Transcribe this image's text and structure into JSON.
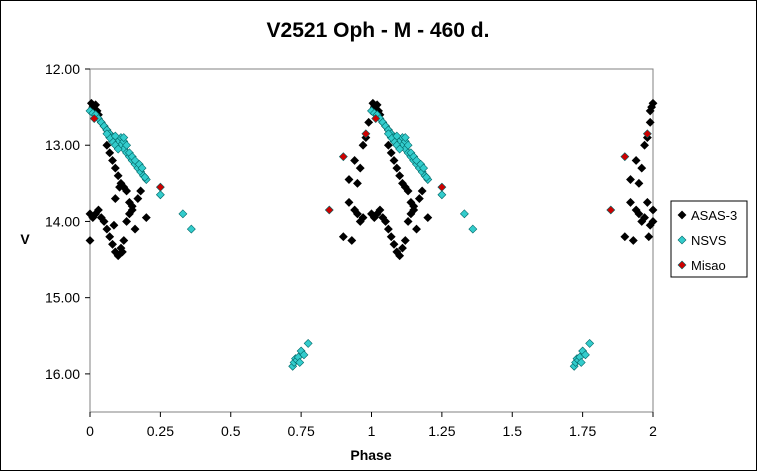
{
  "chart_data": {
    "type": "scatter",
    "title": "V2521 Oph - M - 460 d.",
    "xlabel": "Phase",
    "ylabel": "V",
    "xlim": [
      0,
      2
    ],
    "ylim": [
      12.0,
      16.5
    ],
    "y_inverted": true,
    "x_ticks": [
      "0",
      "0.25",
      "0.5",
      "0.75",
      "1",
      "1.25",
      "1.5",
      "1.75",
      "2"
    ],
    "x_tick_values": [
      0,
      0.25,
      0.5,
      0.75,
      1,
      1.25,
      1.5,
      1.75,
      2
    ],
    "y_ticks": [
      "12.00",
      "13.00",
      "14.00",
      "15.00",
      "16.00"
    ],
    "y_tick_values": [
      12,
      13,
      14,
      15,
      16
    ],
    "grid": false,
    "legend_position": "right",
    "series": [
      {
        "name": "ASAS-3",
        "color": "#000000",
        "marker": "diamond",
        "points": [
          [
            0.005,
            12.45
          ],
          [
            0.01,
            12.5
          ],
          [
            0.012,
            12.48
          ],
          [
            0.02,
            12.47
          ],
          [
            0.025,
            12.55
          ],
          [
            0.03,
            12.6
          ],
          [
            0.04,
            12.7
          ],
          [
            0.05,
            12.75
          ],
          [
            0.06,
            12.8
          ],
          [
            0.07,
            12.85
          ],
          [
            0.06,
            13.0
          ],
          [
            0.07,
            13.1
          ],
          [
            0.08,
            13.2
          ],
          [
            0.09,
            13.3
          ],
          [
            0.1,
            13.4
          ],
          [
            0.11,
            13.5
          ],
          [
            0.12,
            13.55
          ],
          [
            0.13,
            13.6
          ],
          [
            0.14,
            13.75
          ],
          [
            0.15,
            13.8
          ],
          [
            0.0,
            13.9
          ],
          [
            0.01,
            13.95
          ],
          [
            0.02,
            13.9
          ],
          [
            0.03,
            13.85
          ],
          [
            0.04,
            13.95
          ],
          [
            0.05,
            14.0
          ],
          [
            0.06,
            14.1
          ],
          [
            0.07,
            14.2
          ],
          [
            0.08,
            14.3
          ],
          [
            0.09,
            14.4
          ],
          [
            0.1,
            14.45
          ],
          [
            0.11,
            14.35
          ],
          [
            0.12,
            14.25
          ],
          [
            0.13,
            14.0
          ],
          [
            0.14,
            13.9
          ],
          [
            0.15,
            13.85
          ],
          [
            0.16,
            14.1
          ],
          [
            0.17,
            13.7
          ],
          [
            0.18,
            13.6
          ],
          [
            0.2,
            13.95
          ],
          [
            0.0,
            14.25
          ],
          [
            0.09,
            13.7
          ],
          [
            0.105,
            13.55
          ],
          [
            0.115,
            14.4
          ],
          [
            0.085,
            14.05
          ],
          [
            1.005,
            12.45
          ],
          [
            1.01,
            12.5
          ],
          [
            1.012,
            12.48
          ],
          [
            1.02,
            12.47
          ],
          [
            1.025,
            12.55
          ],
          [
            1.03,
            12.6
          ],
          [
            1.04,
            12.7
          ],
          [
            1.05,
            12.75
          ],
          [
            1.06,
            12.8
          ],
          [
            1.07,
            12.85
          ],
          [
            1.06,
            13.0
          ],
          [
            1.07,
            13.1
          ],
          [
            1.08,
            13.2
          ],
          [
            1.09,
            13.3
          ],
          [
            1.1,
            13.4
          ],
          [
            1.11,
            13.5
          ],
          [
            1.12,
            13.55
          ],
          [
            1.13,
            13.6
          ],
          [
            1.14,
            13.75
          ],
          [
            1.15,
            13.8
          ],
          [
            1.0,
            13.9
          ],
          [
            1.01,
            13.95
          ],
          [
            1.02,
            13.9
          ],
          [
            1.03,
            13.85
          ],
          [
            1.04,
            13.95
          ],
          [
            1.05,
            14.0
          ],
          [
            1.06,
            14.1
          ],
          [
            1.07,
            14.2
          ],
          [
            1.08,
            14.3
          ],
          [
            1.09,
            14.4
          ],
          [
            1.1,
            14.45
          ],
          [
            1.11,
            14.35
          ],
          [
            1.12,
            14.25
          ],
          [
            1.13,
            14.0
          ],
          [
            1.14,
            13.9
          ],
          [
            1.15,
            13.85
          ],
          [
            1.16,
            14.1
          ],
          [
            1.17,
            13.7
          ],
          [
            1.18,
            13.6
          ],
          [
            1.2,
            13.95
          ],
          [
            0.9,
            14.2
          ],
          [
            0.93,
            14.25
          ],
          [
            0.92,
            13.75
          ],
          [
            0.94,
            13.85
          ],
          [
            0.95,
            13.9
          ],
          [
            0.96,
            14.0
          ],
          [
            0.97,
            13.95
          ],
          [
            0.95,
            13.5
          ],
          [
            0.96,
            13.3
          ],
          [
            0.97,
            13.0
          ],
          [
            0.98,
            12.9
          ],
          [
            0.99,
            12.7
          ],
          [
            0.92,
            13.45
          ],
          [
            0.94,
            13.2
          ],
          [
            1.9,
            14.2
          ],
          [
            1.93,
            14.25
          ],
          [
            1.92,
            13.75
          ],
          [
            1.94,
            13.85
          ],
          [
            1.95,
            13.9
          ],
          [
            1.96,
            14.0
          ],
          [
            1.97,
            13.95
          ],
          [
            1.95,
            13.5
          ],
          [
            1.96,
            13.3
          ],
          [
            1.97,
            13.0
          ],
          [
            1.98,
            12.9
          ],
          [
            1.99,
            12.7
          ],
          [
            1.92,
            13.45
          ],
          [
            1.94,
            13.2
          ],
          [
            1.995,
            12.5
          ],
          [
            2.0,
            12.45
          ],
          [
            1.99,
            12.55
          ],
          [
            2.0,
            13.85
          ],
          [
            2.0,
            14.0
          ],
          [
            1.985,
            14.2
          ],
          [
            1.99,
            14.05
          ],
          [
            1.98,
            13.75
          ]
        ]
      },
      {
        "name": "NSVS",
        "color": "#33CCCC",
        "marker": "diamond",
        "points": [
          [
            0.0,
            12.55
          ],
          [
            0.01,
            12.58
          ],
          [
            0.02,
            12.6
          ],
          [
            0.03,
            12.65
          ],
          [
            0.04,
            12.7
          ],
          [
            0.05,
            12.75
          ],
          [
            0.06,
            12.8
          ],
          [
            0.07,
            12.85
          ],
          [
            0.08,
            12.9
          ],
          [
            0.09,
            12.92
          ],
          [
            0.1,
            12.95
          ],
          [
            0.11,
            13.0
          ],
          [
            0.12,
            13.05
          ],
          [
            0.13,
            13.1
          ],
          [
            0.14,
            13.15
          ],
          [
            0.15,
            13.2
          ],
          [
            0.16,
            13.25
          ],
          [
            0.17,
            13.3
          ],
          [
            0.18,
            13.35
          ],
          [
            0.19,
            13.4
          ],
          [
            0.2,
            13.45
          ],
          [
            0.08,
            12.95
          ],
          [
            0.09,
            13.0
          ],
          [
            0.1,
            13.05
          ],
          [
            0.11,
            12.9
          ],
          [
            0.12,
            12.95
          ],
          [
            0.13,
            13.0
          ],
          [
            0.14,
            13.1
          ],
          [
            0.15,
            13.15
          ],
          [
            0.16,
            13.2
          ],
          [
            0.07,
            12.9
          ],
          [
            0.06,
            12.85
          ],
          [
            0.09,
            12.88
          ],
          [
            0.12,
            12.9
          ],
          [
            0.175,
            13.25
          ],
          [
            0.185,
            13.3
          ],
          [
            0.195,
            13.42
          ],
          [
            0.25,
            13.65
          ],
          [
            0.33,
            13.9
          ],
          [
            0.36,
            14.1
          ],
          [
            0.72,
            15.9
          ],
          [
            0.725,
            15.85
          ],
          [
            0.73,
            15.8
          ],
          [
            0.735,
            15.82
          ],
          [
            0.74,
            15.78
          ],
          [
            0.745,
            15.85
          ],
          [
            0.75,
            15.7
          ],
          [
            0.76,
            15.75
          ],
          [
            0.775,
            15.6
          ],
          [
            1.0,
            12.55
          ],
          [
            1.01,
            12.58
          ],
          [
            1.02,
            12.6
          ],
          [
            1.03,
            12.65
          ],
          [
            1.04,
            12.7
          ],
          [
            1.05,
            12.75
          ],
          [
            1.06,
            12.8
          ],
          [
            1.07,
            12.85
          ],
          [
            1.08,
            12.9
          ],
          [
            1.09,
            12.92
          ],
          [
            1.1,
            12.95
          ],
          [
            1.11,
            13.0
          ],
          [
            1.12,
            13.05
          ],
          [
            1.13,
            13.1
          ],
          [
            1.14,
            13.15
          ],
          [
            1.15,
            13.2
          ],
          [
            1.16,
            13.25
          ],
          [
            1.17,
            13.3
          ],
          [
            1.18,
            13.35
          ],
          [
            1.19,
            13.4
          ],
          [
            1.2,
            13.45
          ],
          [
            1.08,
            12.95
          ],
          [
            1.09,
            13.0
          ],
          [
            1.1,
            13.05
          ],
          [
            1.11,
            12.9
          ],
          [
            1.12,
            12.95
          ],
          [
            1.13,
            13.0
          ],
          [
            1.14,
            13.1
          ],
          [
            1.15,
            13.15
          ],
          [
            1.16,
            13.2
          ],
          [
            1.07,
            12.9
          ],
          [
            1.06,
            12.85
          ],
          [
            1.09,
            12.88
          ],
          [
            1.12,
            12.9
          ],
          [
            1.175,
            13.25
          ],
          [
            1.185,
            13.3
          ],
          [
            1.195,
            13.42
          ],
          [
            1.25,
            13.65
          ],
          [
            1.33,
            13.9
          ],
          [
            1.36,
            14.1
          ],
          [
            1.72,
            15.9
          ],
          [
            1.725,
            15.85
          ],
          [
            1.73,
            15.8
          ],
          [
            1.735,
            15.82
          ],
          [
            1.74,
            15.78
          ],
          [
            1.745,
            15.85
          ],
          [
            1.75,
            15.7
          ],
          [
            1.76,
            15.75
          ],
          [
            1.775,
            15.6
          ]
        ]
      },
      {
        "name": "Misao",
        "color": "#CC0000",
        "marker": "diamond",
        "points": [
          [
            0.015,
            12.65
          ],
          [
            0.25,
            13.55
          ],
          [
            0.85,
            13.85
          ],
          [
            0.9,
            13.15
          ],
          [
            0.98,
            12.85
          ],
          [
            1.015,
            12.65
          ],
          [
            1.25,
            13.55
          ],
          [
            1.85,
            13.85
          ],
          [
            1.9,
            13.15
          ],
          [
            1.98,
            12.85
          ]
        ]
      }
    ]
  }
}
